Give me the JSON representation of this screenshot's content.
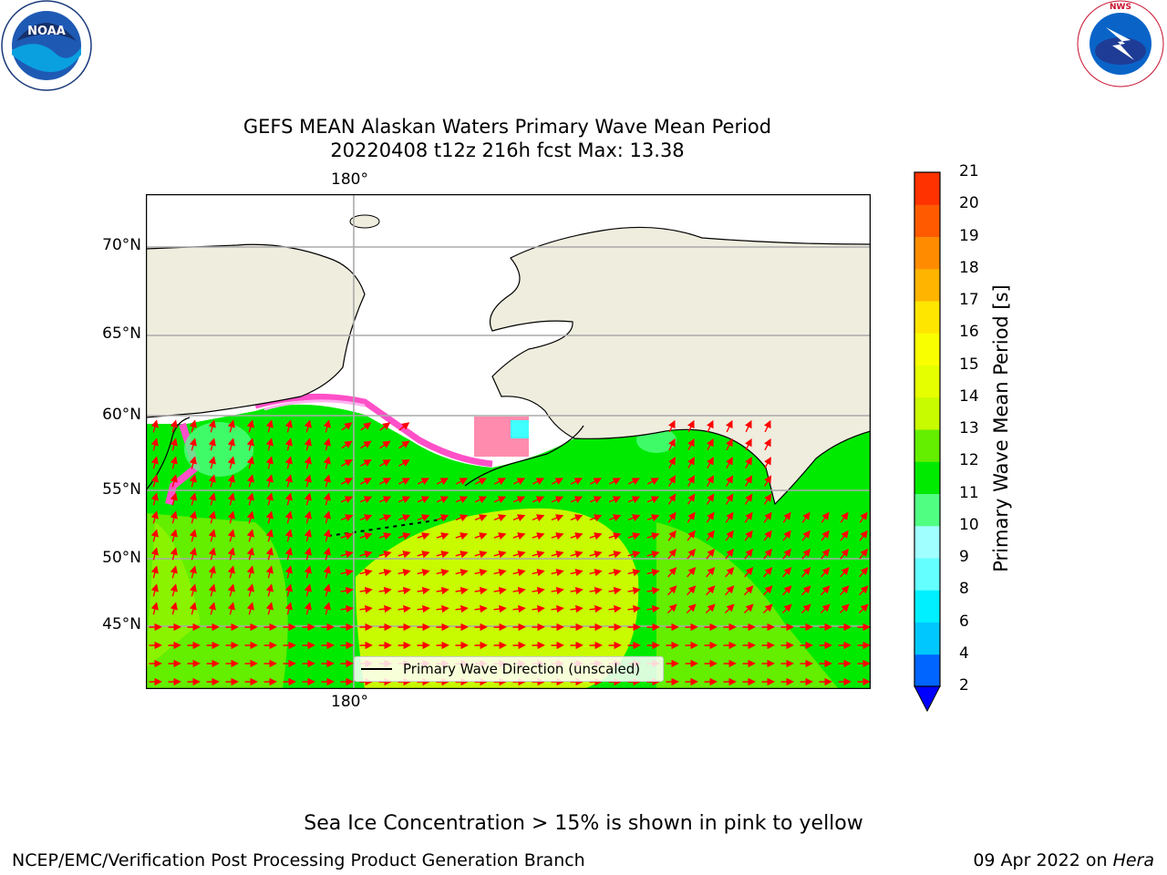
{
  "header": {
    "title_line1": "GEFS MEAN Alaskan Waters Primary Wave Mean Period",
    "title_line2": "20220408 t12z 216h fcst   Max: 13.38"
  },
  "logos": {
    "left": "noara-logo",
    "left_text": "NOAA",
    "right": "nws-logo",
    "right_text": "NATIONAL WEATHER SERVICE"
  },
  "map": {
    "lon_label_top": "180°",
    "lon_label_bottom": "180°",
    "lat_labels": [
      "70°N",
      "65°N",
      "60°N",
      "55°N",
      "50°N",
      "45°N"
    ],
    "legend_label": "Primary Wave Direction (unscaled)",
    "arrow_color": "#ff0000",
    "land_color": "#efedde",
    "ice_color": "#ffffff"
  },
  "colorbar": {
    "label": "Primary Wave Mean Period [s]",
    "ticks": [
      "2",
      "4",
      "6",
      "8",
      "9",
      "10",
      "11",
      "12",
      "13",
      "14",
      "15",
      "16",
      "17",
      "18",
      "19",
      "20",
      "21"
    ],
    "colors": [
      "#0064ff",
      "#00c8ff",
      "#00f0ff",
      "#64ffff",
      "#a0ffff",
      "#50ff82",
      "#00ea00",
      "#64ee00",
      "#c8fa00",
      "#e6ff00",
      "#faff00",
      "#ffe600",
      "#ffb400",
      "#ff8c00",
      "#ff5a00",
      "#ff3200",
      "#ff0000"
    ]
  },
  "bottom_note": "Sea Ice Concentration > 15% is shown in pink to yellow",
  "footer": {
    "left": "NCEP/EMC/Verification Post Processing Product Generation Branch",
    "right_date": "09 Apr 2022 on ",
    "right_host": "Hera"
  }
}
